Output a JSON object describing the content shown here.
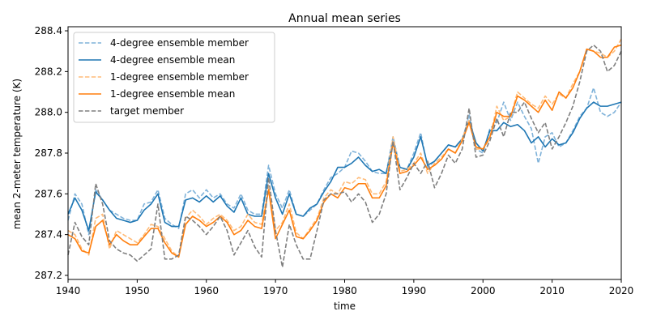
{
  "chart_data": {
    "type": "line",
    "title": "Annual mean series",
    "xlabel": "time",
    "ylabel": "mean 2-meter temperature (K)",
    "xlim": [
      1940,
      2020
    ],
    "ylim": [
      287.18,
      288.42
    ],
    "xticks": [
      1940,
      1950,
      1960,
      1970,
      1980,
      1990,
      2000,
      2010,
      2020
    ],
    "yticks": [
      287.2,
      287.4,
      287.6,
      287.8,
      288.0,
      288.2,
      288.4
    ],
    "xtick_labels": [
      "1940",
      "1950",
      "1960",
      "1970",
      "1980",
      "1990",
      "2000",
      "2010",
      "2020"
    ],
    "ytick_labels": [
      "287.2",
      "287.4",
      "287.6",
      "287.8",
      "288.0",
      "288.2",
      "288.4"
    ],
    "grid": false,
    "legend_position": "top-left",
    "x": [
      1940,
      1941,
      1942,
      1943,
      1944,
      1945,
      1946,
      1947,
      1948,
      1949,
      1950,
      1951,
      1952,
      1953,
      1954,
      1955,
      1956,
      1957,
      1958,
      1959,
      1960,
      1961,
      1962,
      1963,
      1964,
      1965,
      1966,
      1967,
      1968,
      1969,
      1970,
      1971,
      1972,
      1973,
      1974,
      1975,
      1976,
      1977,
      1978,
      1979,
      1980,
      1981,
      1982,
      1983,
      1984,
      1985,
      1986,
      1987,
      1988,
      1989,
      1990,
      1991,
      1992,
      1993,
      1994,
      1995,
      1996,
      1997,
      1998,
      1999,
      2000,
      2001,
      2002,
      2003,
      2004,
      2005,
      2006,
      2007,
      2008,
      2009,
      2010,
      2011,
      2012,
      2013,
      2014,
      2015,
      2016,
      2017,
      2018,
      2019,
      2020
    ],
    "series": [
      {
        "name": "4-degree ensemble member",
        "color": "#7fb2d9",
        "style": "dashed",
        "values": [
          287.47,
          287.6,
          287.55,
          287.4,
          287.62,
          287.57,
          287.52,
          287.5,
          287.48,
          287.47,
          287.47,
          287.55,
          287.56,
          287.62,
          287.48,
          287.45,
          287.43,
          287.6,
          287.62,
          287.58,
          287.62,
          287.58,
          287.6,
          287.55,
          287.53,
          287.6,
          287.52,
          287.5,
          287.5,
          287.74,
          287.6,
          287.53,
          287.62,
          287.5,
          287.49,
          287.52,
          287.55,
          287.62,
          287.68,
          287.7,
          287.73,
          287.81,
          287.8,
          287.76,
          287.71,
          287.7,
          287.7,
          287.88,
          287.73,
          287.72,
          287.8,
          287.9,
          287.73,
          287.76,
          287.8,
          287.84,
          287.83,
          287.86,
          287.99,
          287.82,
          287.8,
          287.92,
          287.95,
          288.05,
          287.96,
          288.05,
          287.98,
          287.92,
          287.75,
          287.88,
          287.9,
          287.83,
          287.85,
          287.91,
          287.98,
          288.02,
          288.12,
          288.0,
          287.98,
          288.0,
          288.05
        ]
      },
      {
        "name": "4-degree ensemble mean",
        "color": "#1f77b4",
        "style": "solid",
        "values": [
          287.5,
          287.58,
          287.52,
          287.42,
          287.61,
          287.57,
          287.52,
          287.48,
          287.47,
          287.46,
          287.47,
          287.52,
          287.55,
          287.6,
          287.46,
          287.44,
          287.44,
          287.57,
          287.58,
          287.56,
          287.59,
          287.56,
          287.59,
          287.54,
          287.51,
          287.58,
          287.5,
          287.49,
          287.49,
          287.7,
          287.58,
          287.5,
          287.6,
          287.5,
          287.49,
          287.53,
          287.55,
          287.61,
          287.66,
          287.73,
          287.73,
          287.75,
          287.78,
          287.74,
          287.71,
          287.72,
          287.7,
          287.85,
          287.73,
          287.72,
          287.78,
          287.88,
          287.74,
          287.76,
          287.8,
          287.84,
          287.83,
          287.87,
          287.96,
          287.85,
          287.81,
          287.91,
          287.91,
          287.95,
          287.93,
          287.94,
          287.91,
          287.85,
          287.88,
          287.83,
          287.87,
          287.84,
          287.85,
          287.9,
          287.97,
          288.02,
          288.05,
          288.03,
          288.03,
          288.04,
          288.05
        ]
      },
      {
        "name": "1-degree ensemble member",
        "color": "#ffbb78",
        "style": "dashed",
        "values": [
          287.42,
          287.4,
          287.33,
          287.3,
          287.48,
          287.5,
          287.33,
          287.42,
          287.4,
          287.38,
          287.36,
          287.4,
          287.45,
          287.44,
          287.38,
          287.32,
          287.29,
          287.48,
          287.52,
          287.49,
          287.45,
          287.48,
          287.5,
          287.47,
          287.42,
          287.44,
          287.5,
          287.46,
          287.45,
          287.64,
          287.42,
          287.46,
          287.55,
          287.41,
          287.38,
          287.43,
          287.48,
          287.58,
          287.62,
          287.6,
          287.66,
          287.65,
          287.68,
          287.67,
          287.6,
          287.6,
          287.66,
          287.88,
          287.71,
          287.72,
          287.75,
          287.8,
          287.7,
          287.75,
          287.78,
          287.82,
          287.8,
          287.87,
          287.96,
          287.82,
          287.82,
          287.87,
          288.03,
          287.96,
          287.98,
          288.1,
          288.07,
          288.04,
          288.02,
          288.08,
          288.04,
          288.09,
          288.07,
          288.14,
          288.2,
          288.31,
          288.3,
          288.29,
          288.27,
          288.3,
          288.36
        ]
      },
      {
        "name": "1-degree ensemble mean",
        "color": "#ff7f0e",
        "style": "solid",
        "values": [
          287.4,
          287.38,
          287.32,
          287.31,
          287.44,
          287.47,
          287.35,
          287.4,
          287.37,
          287.35,
          287.35,
          287.39,
          287.43,
          287.43,
          287.36,
          287.31,
          287.29,
          287.45,
          287.49,
          287.47,
          287.44,
          287.46,
          287.49,
          287.46,
          287.4,
          287.42,
          287.47,
          287.44,
          287.43,
          287.62,
          287.38,
          287.45,
          287.52,
          287.39,
          287.38,
          287.42,
          287.47,
          287.56,
          287.6,
          287.58,
          287.63,
          287.62,
          287.65,
          287.65,
          287.58,
          287.58,
          287.64,
          287.85,
          287.7,
          287.71,
          287.74,
          287.78,
          287.72,
          287.74,
          287.77,
          287.82,
          287.8,
          287.86,
          287.95,
          287.83,
          287.82,
          287.88,
          288.0,
          287.98,
          287.98,
          288.08,
          288.06,
          288.03,
          288.0,
          288.06,
          288.01,
          288.1,
          288.07,
          288.12,
          288.2,
          288.31,
          288.3,
          288.27,
          288.27,
          288.32,
          288.33
        ]
      },
      {
        "name": "target member",
        "color": "#7f7f7f",
        "style": "dashed",
        "values": [
          287.3,
          287.46,
          287.39,
          287.35,
          287.65,
          287.55,
          287.37,
          287.33,
          287.31,
          287.3,
          287.27,
          287.3,
          287.33,
          287.55,
          287.28,
          287.28,
          287.3,
          287.49,
          287.47,
          287.44,
          287.4,
          287.44,
          287.49,
          287.42,
          287.3,
          287.36,
          287.42,
          287.34,
          287.29,
          287.68,
          287.42,
          287.24,
          287.45,
          287.35,
          287.28,
          287.28,
          287.42,
          287.57,
          287.6,
          287.6,
          287.61,
          287.56,
          287.6,
          287.56,
          287.46,
          287.5,
          287.6,
          287.86,
          287.62,
          287.68,
          287.75,
          287.7,
          287.76,
          287.63,
          287.7,
          287.79,
          287.75,
          287.82,
          288.02,
          287.78,
          287.79,
          287.86,
          287.97,
          287.88,
          288.0,
          288.0,
          288.05,
          287.97,
          287.9,
          287.95,
          287.82,
          287.88,
          287.95,
          288.03,
          288.15,
          288.3,
          288.33,
          288.3,
          288.2,
          288.23,
          288.3
        ]
      }
    ]
  }
}
